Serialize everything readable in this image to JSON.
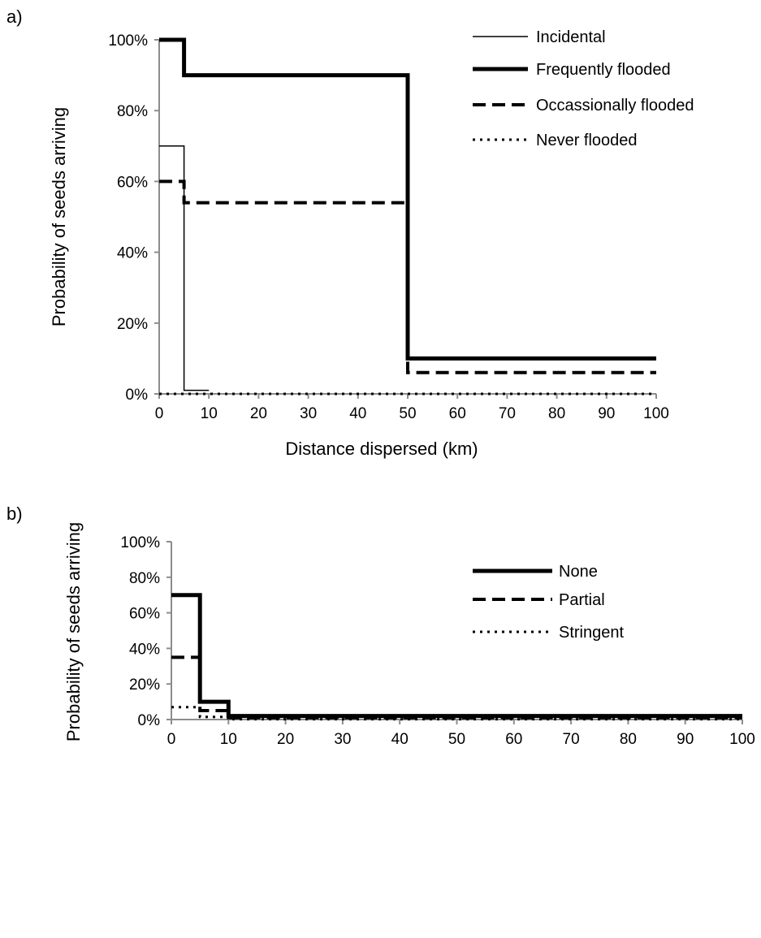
{
  "chart_data": [
    {
      "type": "line",
      "panel_label": "a)",
      "title": "",
      "xlabel": "Distance dispersed (km)",
      "ylabel": "Probability of seeds arriving",
      "xlim": [
        0,
        100
      ],
      "ylim": [
        0,
        1
      ],
      "x_ticks": [
        "0",
        "10",
        "20",
        "30",
        "40",
        "50",
        "60",
        "70",
        "80",
        "90",
        "100"
      ],
      "y_ticks": [
        "0%",
        "20%",
        "40%",
        "60%",
        "80%",
        "100%"
      ],
      "grid": false,
      "legend_position": "top-right",
      "series": [
        {
          "name": "Incidental",
          "style": "thin-solid",
          "color": "#000000",
          "points": [
            [
              0,
              1.0
            ],
            [
              5,
              1.0
            ],
            [
              5,
              0.9
            ],
            [
              50,
              0.9
            ],
            [
              50,
              0.1
            ],
            [
              100,
              0.1
            ]
          ]
        },
        {
          "name": "Incidental",
          "style": "thin-solid",
          "color": "#000000",
          "points": [
            [
              0,
              0.7
            ],
            [
              5,
              0.7
            ],
            [
              5,
              0.01
            ],
            [
              10,
              0.01
            ]
          ]
        },
        {
          "name": "Frequently flooded",
          "style": "thick-solid",
          "color": "#000000",
          "points": [
            [
              0,
              1.0
            ],
            [
              5,
              1.0
            ],
            [
              5,
              0.9
            ],
            [
              50,
              0.9
            ],
            [
              50,
              0.1
            ],
            [
              100,
              0.1
            ]
          ]
        },
        {
          "name": "Occassionally flooded",
          "style": "thick-dashed",
          "color": "#000000",
          "points": [
            [
              0,
              0.6
            ],
            [
              5,
              0.6
            ],
            [
              5,
              0.54
            ],
            [
              50,
              0.54
            ],
            [
              50,
              0.06
            ],
            [
              100,
              0.06
            ]
          ]
        },
        {
          "name": "Never flooded",
          "style": "dotted",
          "color": "#000000",
          "points": [
            [
              0,
              0.0
            ],
            [
              100,
              0.0
            ]
          ]
        }
      ],
      "legend": [
        {
          "name": "Incidental",
          "style": "thin-solid"
        },
        {
          "name": "Frequently flooded",
          "style": "thick-solid"
        },
        {
          "name": "Occassionally flooded",
          "style": "thick-dashed"
        },
        {
          "name": "Never flooded",
          "style": "dotted"
        }
      ]
    },
    {
      "type": "line",
      "panel_label": "b)",
      "title": "",
      "xlabel": "",
      "ylabel": "Probability of seeds arriving",
      "xlim": [
        0,
        100
      ],
      "ylim": [
        0,
        1
      ],
      "x_ticks": [
        "0",
        "10",
        "20",
        "30",
        "40",
        "50",
        "60",
        "70",
        "80",
        "90",
        "100"
      ],
      "y_ticks": [
        "0%",
        "20%",
        "40%",
        "60%",
        "80%",
        "100%"
      ],
      "grid": false,
      "legend_position": "top-right",
      "series": [
        {
          "name": "None",
          "style": "thick-solid",
          "color": "#000000",
          "points": [
            [
              0,
              0.7
            ],
            [
              5,
              0.7
            ],
            [
              5,
              0.1
            ],
            [
              10,
              0.1
            ],
            [
              10,
              0.02
            ],
            [
              100,
              0.02
            ]
          ]
        },
        {
          "name": "Partial",
          "style": "thick-dashed",
          "color": "#000000",
          "points": [
            [
              0,
              0.35
            ],
            [
              5,
              0.35
            ],
            [
              5,
              0.05
            ],
            [
              10,
              0.05
            ],
            [
              10,
              0.01
            ],
            [
              100,
              0.01
            ]
          ]
        },
        {
          "name": "Stringent",
          "style": "dotted",
          "color": "#000000",
          "points": [
            [
              0,
              0.07
            ],
            [
              5,
              0.07
            ],
            [
              5,
              0.015
            ],
            [
              10,
              0.015
            ],
            [
              10,
              0.002
            ],
            [
              100,
              0.002
            ]
          ]
        }
      ],
      "legend": [
        {
          "name": "None",
          "style": "thick-solid"
        },
        {
          "name": "Partial",
          "style": "thick-dashed"
        },
        {
          "name": "Stringent",
          "style": "dotted"
        }
      ]
    }
  ]
}
